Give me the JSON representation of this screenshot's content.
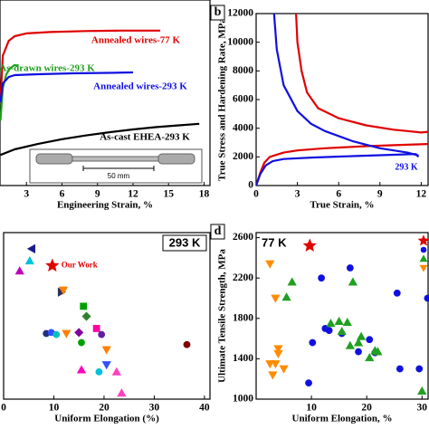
{
  "chart_data": [
    {
      "type": "line",
      "x_label": "Engineering Strain, %",
      "xlim": [
        0,
        18.5
      ],
      "xticks": [
        3,
        6,
        9,
        12,
        15,
        18
      ],
      "ylim": [
        0,
        2000
      ],
      "inset_label": "50 mm",
      "series": [
        {
          "name": "Annealed wires-77 K",
          "color": "#e00000",
          "x": [
            0.8,
            1,
            1.5,
            2,
            3,
            5,
            8,
            11,
            14.3
          ],
          "values": [
            900,
            1400,
            1560,
            1610,
            1640,
            1655,
            1665,
            1670,
            1670
          ]
        },
        {
          "name": "As-drawn wires-293 K",
          "color": "#20a020",
          "x": [
            0.8,
            1,
            1.3,
            1.6,
            2,
            2.3
          ],
          "values": [
            700,
            1050,
            1200,
            1260,
            1300,
            1290
          ]
        },
        {
          "name": "Annealed wires-293 K",
          "color": "#1010e0",
          "x": [
            0.8,
            1,
            1.5,
            2,
            4,
            7,
            10,
            12
          ],
          "values": [
            900,
            1100,
            1170,
            1190,
            1200,
            1210,
            1215,
            1220
          ]
        },
        {
          "name": "As-cast EHEA-293 K",
          "color": "#000000",
          "x": [
            0.8,
            2,
            4,
            6,
            8,
            10,
            12,
            14,
            16,
            17.6
          ],
          "values": [
            330,
            390,
            450,
            500,
            540,
            575,
            605,
            630,
            650,
            665
          ]
        }
      ]
    },
    {
      "type": "line",
      "panel_label": "b",
      "x_label": "True Strain, %",
      "y_label": "True Stress and Hardening Rate, MPa",
      "xlim": [
        0,
        12.5
      ],
      "xticks": [
        0,
        3,
        6,
        9,
        12
      ],
      "ylim": [
        0,
        12000
      ],
      "yticks": [
        0,
        2000,
        4000,
        6000,
        8000,
        10000,
        12000
      ],
      "annotation": "293 K",
      "series": [
        {
          "color": "#e00000",
          "x": [
            0,
            0.3,
            0.6,
            1,
            2,
            3,
            5,
            8,
            11,
            12.5
          ],
          "values": [
            0,
            900,
            1600,
            2000,
            2300,
            2450,
            2600,
            2750,
            2850,
            2900
          ]
        },
        {
          "color": "#1010e0",
          "x": [
            0,
            0.3,
            0.7,
            1.2,
            2,
            4,
            7,
            10,
            11.6,
            11.8
          ],
          "values": [
            0,
            800,
            1400,
            1700,
            1850,
            1950,
            2050,
            2150,
            2200,
            2000
          ]
        },
        {
          "color": "#e00000",
          "x": [
            2.9,
            3.0,
            3.3,
            3.7,
            4.5,
            6,
            8,
            10,
            11,
            12,
            12.5
          ],
          "values": [
            12000,
            10000,
            8000,
            6500,
            5400,
            4700,
            4200,
            3900,
            3800,
            3700,
            3750
          ]
        },
        {
          "color": "#1010e0",
          "x": [
            1.3,
            1.5,
            2,
            3,
            4,
            5,
            7,
            9,
            11,
            11.8
          ],
          "values": [
            12000,
            9500,
            7000,
            5200,
            4300,
            3800,
            3100,
            2600,
            2300,
            2100
          ]
        }
      ]
    },
    {
      "type": "scatter",
      "x_label": "Uniform Elongation (%)",
      "tag": "293 K",
      "xlim": [
        0,
        41.1
      ],
      "xticks": [
        0,
        10,
        20,
        30,
        40
      ],
      "ylim": [
        1000,
        2650
      ],
      "series": [
        {
          "name": "Our Work",
          "color": "#e00000",
          "marker": "star",
          "x": [
            9.7
          ],
          "values": [
            2322
          ]
        },
        {
          "x": [
            5.6,
            3.2,
            5.2,
            11.5,
            11.9,
            15.9,
            16.5,
            8.5,
            9.5,
            15.0,
            15.5,
            18.5,
            19.5,
            12.5,
            10.5,
            20.5,
            15.5,
            19,
            20.5,
            22.5,
            23.5,
            36.5
          ],
          "values": [
            2490,
            2270,
            2370,
            2060,
            2080,
            1920,
            1820,
            1650,
            1660,
            1660,
            1560,
            1700,
            1640,
            1650,
            1640,
            1490,
            1290,
            1270,
            1340,
            1270,
            1060,
            1540
          ],
          "colors": [
            "#1a1a8c",
            "#c000c0",
            "#00c0e0",
            "#303060",
            "#ff8000",
            "#00a000",
            "#2f7f2f",
            "#203080",
            "#3050ff",
            "#8000a0",
            "#00a000",
            "#ff00a0",
            "#6020a0",
            "#ff8000",
            "#00c0c0",
            "#ff8000",
            "#ff00c0",
            "#00c0e0",
            "#3050ff",
            "#ff40c0",
            "#ff40c0",
            "#800000"
          ],
          "markers": [
            "triangle-left",
            "triangle-up",
            "triangle-up",
            "triangle-right",
            "triangle-down",
            "square",
            "diamond",
            "circle",
            "circle",
            "diamond",
            "circle",
            "square",
            "circle",
            "triangle-down",
            "circle",
            "triangle-down",
            "triangle-up",
            "circle",
            "triangle-down",
            "triangle-up",
            "triangle-up",
            "circle"
          ]
        }
      ]
    },
    {
      "type": "scatter",
      "panel_label": "d",
      "x_label": "Uniform Elongation, %",
      "y_label": "Ultimate Tensile Strength, MPa",
      "tag": "77 K",
      "xlim": [
        0,
        31.1
      ],
      "xticks": [
        10,
        20,
        30
      ],
      "ylim": [
        1000,
        2650
      ],
      "yticks": [
        1000,
        1400,
        1800,
        2200,
        2600
      ],
      "series": [
        {
          "color": "#e00000",
          "marker": "star",
          "x": [
            9.7
          ],
          "values": [
            2520
          ]
        },
        {
          "color": "#1010e0",
          "marker": "circle",
          "x": [
            9.5,
            10.2,
            11.8,
            12.5,
            17,
            15.5,
            18.5,
            20.5,
            21.5,
            25.5,
            26,
            29.5,
            31,
            13.2
          ],
          "values": [
            1160,
            1560,
            2200,
            1700,
            2300,
            1650,
            1470,
            1590,
            1460,
            2050,
            1300,
            1300,
            2000,
            1680
          ]
        },
        {
          "color": "#20a020",
          "marker": "triangle-up",
          "x": [
            5.5,
            6.5,
            15,
            15.5,
            16.5,
            17.5,
            18.5,
            19,
            20.5,
            21.5,
            22,
            30,
            13.5,
            17
          ],
          "values": [
            2010,
            2160,
            1770,
            1670,
            1760,
            2160,
            1560,
            1620,
            1410,
            1480,
            1470,
            1080,
            1750,
            1530
          ]
        },
        {
          "color": "#ff8c00",
          "marker": "triangle-down",
          "x": [
            2.5,
            3.5,
            4,
            4,
            3.5,
            2.5,
            3,
            5
          ],
          "values": [
            2340,
            2000,
            1500,
            1450,
            1350,
            1350,
            1240,
            1300
          ]
        }
      ]
    }
  ]
}
